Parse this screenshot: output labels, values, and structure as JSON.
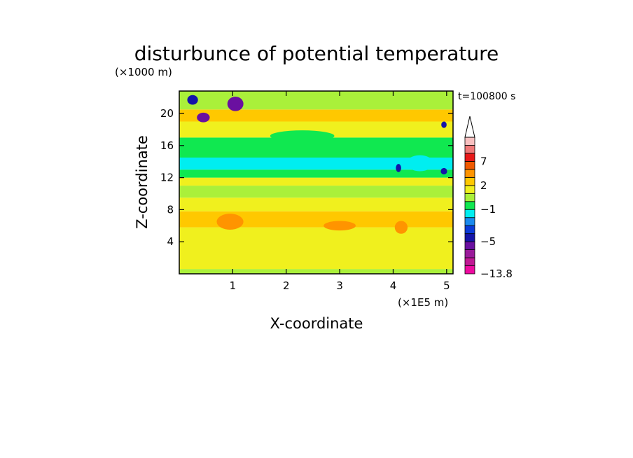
{
  "chart_data": {
    "type": "heatmap",
    "title": "disturbunce of potential temperature",
    "xlabel": "X-coordinate",
    "ylabel": "Z-coordinate",
    "x_unit": "(×1E5 m)",
    "y_unit": "(×1000 m)",
    "time_label": "t=100800 s",
    "xlim": [
      0,
      5.12
    ],
    "ylim": [
      0,
      22.8
    ],
    "x_ticks": [
      "1",
      "2",
      "3",
      "4",
      "5"
    ],
    "x_tick_values": [
      1,
      2,
      3,
      4,
      5
    ],
    "y_ticks": [
      "4",
      "8",
      "12",
      "16",
      "20"
    ],
    "y_tick_values": [
      4,
      8,
      12,
      16,
      20
    ],
    "colorbar": {
      "labels": [
        "7",
        "2",
        "−1",
        "−5",
        "−13.8"
      ],
      "levels": [
        "-13.8",
        "-10",
        "-8",
        "-6",
        "-5",
        "-4",
        "-3",
        "-2",
        "-1",
        "0",
        "1",
        "2",
        "3",
        "5",
        "7",
        "9",
        "max"
      ],
      "colors": [
        "#ee0aa0",
        "#c01894",
        "#9a1a9a",
        "#6a10a0",
        "#1414a8",
        "#0a3ad8",
        "#1a8aee",
        "#00eef0",
        "#10e850",
        "#aaf03a",
        "#f0f01e",
        "#ffc800",
        "#ff9400",
        "#f05a00",
        "#e81818",
        "#f07878",
        "#f8c0c0"
      ]
    },
    "bands": [
      {
        "z": [
          0.0,
          0.6
        ],
        "level": "0..1"
      },
      {
        "z": [
          0.6,
          3.8
        ],
        "level": "1..2"
      },
      {
        "z": [
          3.8,
          5.8
        ],
        "level": "1..2"
      },
      {
        "z": [
          5.8,
          7.8
        ],
        "level": "2..3"
      },
      {
        "z": [
          7.8,
          9.5
        ],
        "level": "1..2"
      },
      {
        "z": [
          9.5,
          11.0
        ],
        "level": "0..1"
      },
      {
        "z": [
          11.0,
          12.0
        ],
        "level": "1..2"
      },
      {
        "z": [
          12.0,
          13.0
        ],
        "level": "-1..0"
      },
      {
        "z": [
          13.0,
          14.5
        ],
        "level": "-2..-1"
      },
      {
        "z": [
          14.5,
          17.0
        ],
        "level": "-1..0"
      },
      {
        "z": [
          17.0,
          19.0
        ],
        "level": "1..2"
      },
      {
        "z": [
          19.0,
          20.5
        ],
        "level": "2..3"
      },
      {
        "z": [
          20.5,
          22.8
        ],
        "level": "0..1"
      }
    ],
    "features": [
      {
        "x": 0.95,
        "z": 6.5,
        "rx": 0.25,
        "rz": 1.0,
        "level": "3..5"
      },
      {
        "x": 3.0,
        "z": 6.0,
        "rx": 0.3,
        "rz": 0.6,
        "level": "3..5"
      },
      {
        "x": 4.15,
        "z": 5.8,
        "rx": 0.12,
        "rz": 0.8,
        "level": "3..5"
      },
      {
        "x": 0.45,
        "z": 19.5,
        "rx": 0.12,
        "rz": 0.6,
        "level": "-6..-5"
      },
      {
        "x": 1.05,
        "z": 21.2,
        "rx": 0.15,
        "rz": 0.9,
        "level": "-6..-5"
      },
      {
        "x": 0.25,
        "z": 21.7,
        "rx": 0.1,
        "rz": 0.6,
        "level": "-5..-4"
      },
      {
        "x": 4.5,
        "z": 13.8,
        "rx": 0.25,
        "rz": 1.0,
        "level": "-2..-1"
      },
      {
        "x": 4.1,
        "z": 13.2,
        "rx": 0.05,
        "rz": 0.5,
        "level": "-5..-4"
      },
      {
        "x": 4.95,
        "z": 12.8,
        "rx": 0.06,
        "rz": 0.4,
        "level": "-5..-4"
      },
      {
        "x": 4.95,
        "z": 18.6,
        "rx": 0.05,
        "rz": 0.4,
        "level": "-5..-4"
      },
      {
        "x": 2.3,
        "z": 17.2,
        "rx": 0.6,
        "rz": 0.7,
        "level": "-1..0"
      }
    ]
  }
}
